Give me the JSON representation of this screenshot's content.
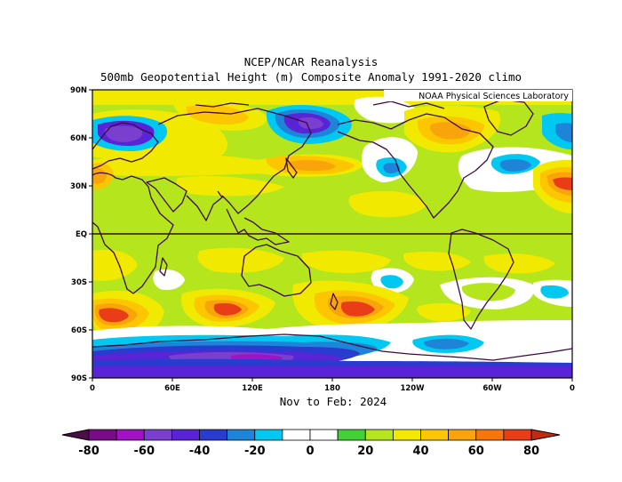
{
  "header": {
    "title": "NCEP/NCAR Reanalysis",
    "subtitle": "500mb Geopotential Height (m) Composite Anomaly 1991-2020 climo"
  },
  "map": {
    "credit": "NOAA Physical Sciences Laboratory",
    "period": "Nov to Feb: 2024",
    "lat_labels": [
      "90N",
      "60N",
      "30N",
      "EQ",
      "30S",
      "60S",
      "90S"
    ],
    "lon_labels": [
      "0",
      "60E",
      "120E",
      "180",
      "120W",
      "60W",
      "0"
    ],
    "projection": "cylindrical-equidistant",
    "lon_range": [
      0,
      360
    ],
    "lat_range": [
      -90,
      90
    ]
  },
  "colorbar": {
    "ticks": [
      "-80",
      "-60",
      "-40",
      "-20",
      "0",
      "20",
      "40",
      "60",
      "80"
    ],
    "levels": [
      -80,
      -70,
      -60,
      -50,
      -40,
      -30,
      -20,
      -10,
      0,
      10,
      20,
      30,
      40,
      50,
      60,
      70,
      80
    ],
    "colors": [
      "#4b0e47",
      "#790b86",
      "#a012c2",
      "#7a3fcf",
      "#5923d6",
      "#2a3bd0",
      "#1d84d8",
      "#00c8f0",
      "#ffffff",
      "#ffffff",
      "#43cf36",
      "#b5e61d",
      "#f1ea00",
      "#fdc600",
      "#f8a40a",
      "#f6760b",
      "#e93d18",
      "#c42a10"
    ]
  },
  "colors": {
    "neutral": "#b5e61d",
    "frame": "#000000",
    "coast": "#3d0a3d",
    "equator_line": "#3d0a3d"
  }
}
